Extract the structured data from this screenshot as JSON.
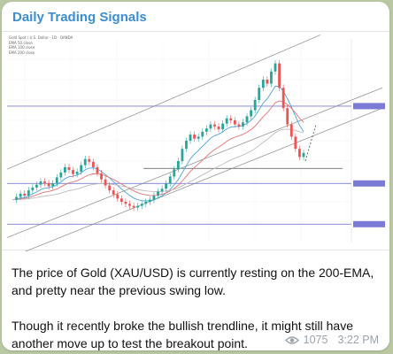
{
  "message": {
    "channel_title": "Daily Trading Signals",
    "paragraphs": [
      "The price of Gold (XAU/USD) is currently resting on the 200-EMA, and pretty near the previous swing low.",
      "Though it recently broke the bullish trendline, it might still have another move up to test the breakout point."
    ],
    "views": "1075",
    "time": "3:22 PM",
    "views_icon": "eye-icon"
  },
  "chart_data": {
    "type": "line",
    "instrument": "Gold Spot / U.S. Dollar · 1D · OANDA",
    "legend": [
      "EMA 50 close",
      "EMA 100 close",
      "EMA 200 close"
    ],
    "colors": {
      "price_up": "#26a69a",
      "price_down": "#ef5350",
      "ema_fast": "#4aa3df",
      "ema_mid": "#e57373",
      "ema_slow": "#bdbdbd",
      "channel": "#888888",
      "level": "#7b7bd6"
    },
    "close": [
      1805,
      1812,
      1820,
      1815,
      1828,
      1835,
      1842,
      1850,
      1846,
      1838,
      1845,
      1860,
      1872,
      1885,
      1878,
      1868,
      1874,
      1890,
      1905,
      1898,
      1885,
      1870,
      1855,
      1840,
      1828,
      1818,
      1808,
      1800,
      1795,
      1790,
      1786,
      1790,
      1795,
      1800,
      1805,
      1815,
      1825,
      1832,
      1845,
      1862,
      1880,
      1900,
      1930,
      1950,
      1965,
      1955,
      1960,
      1972,
      1980,
      1990,
      1985,
      1978,
      1992,
      2005,
      2000,
      1990,
      1985,
      1995,
      2010,
      2025,
      2050,
      2080,
      2100,
      2090,
      2120,
      2140,
      2080,
      2030,
      1990,
      1960,
      1930,
      1910,
      1920
    ]
  }
}
